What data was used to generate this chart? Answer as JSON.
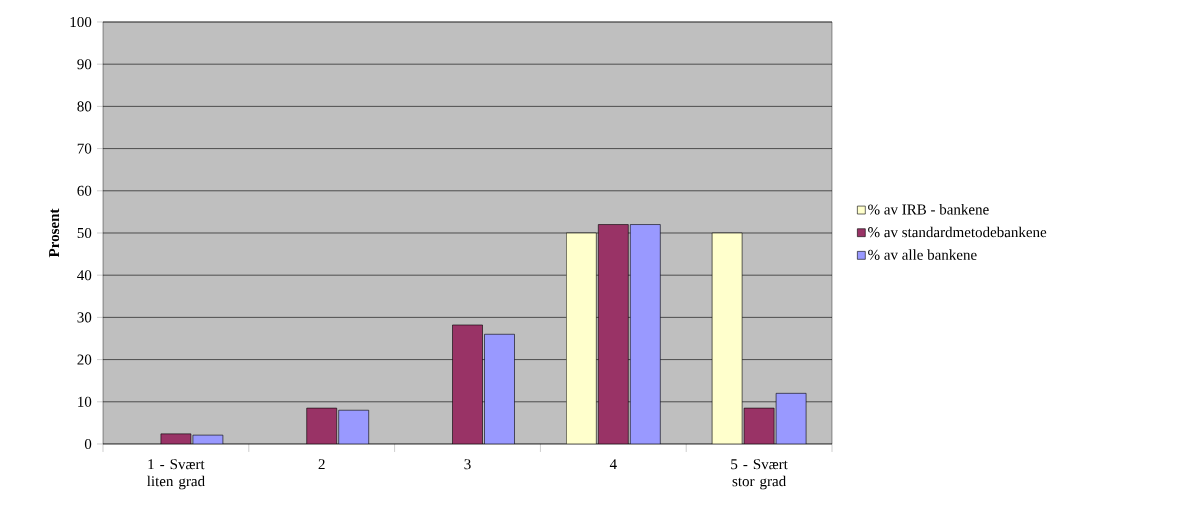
{
  "chart_data": {
    "type": "bar",
    "ylabel": "Prosent",
    "categories": [
      "1 - Svært liten grad",
      "2",
      "3",
      "4",
      "5 - Svært stor grad"
    ],
    "series": [
      {
        "name": "% av IRB - bankene",
        "color": "#ffffcc",
        "values": [
          null,
          null,
          null,
          50,
          50
        ]
      },
      {
        "name": "% av standardmetodebankene",
        "color": "#993366",
        "values": [
          2.4,
          8.5,
          28.2,
          52,
          8.5
        ]
      },
      {
        "name": "% av alle bankene",
        "color": "#9999ff",
        "values": [
          2.1,
          8,
          26,
          52,
          12
        ]
      }
    ],
    "ylim": [
      0,
      100
    ],
    "yticks": [
      0,
      10,
      20,
      30,
      40,
      50,
      60,
      70,
      80,
      90,
      100
    ],
    "grid": "y",
    "legend": "right"
  }
}
